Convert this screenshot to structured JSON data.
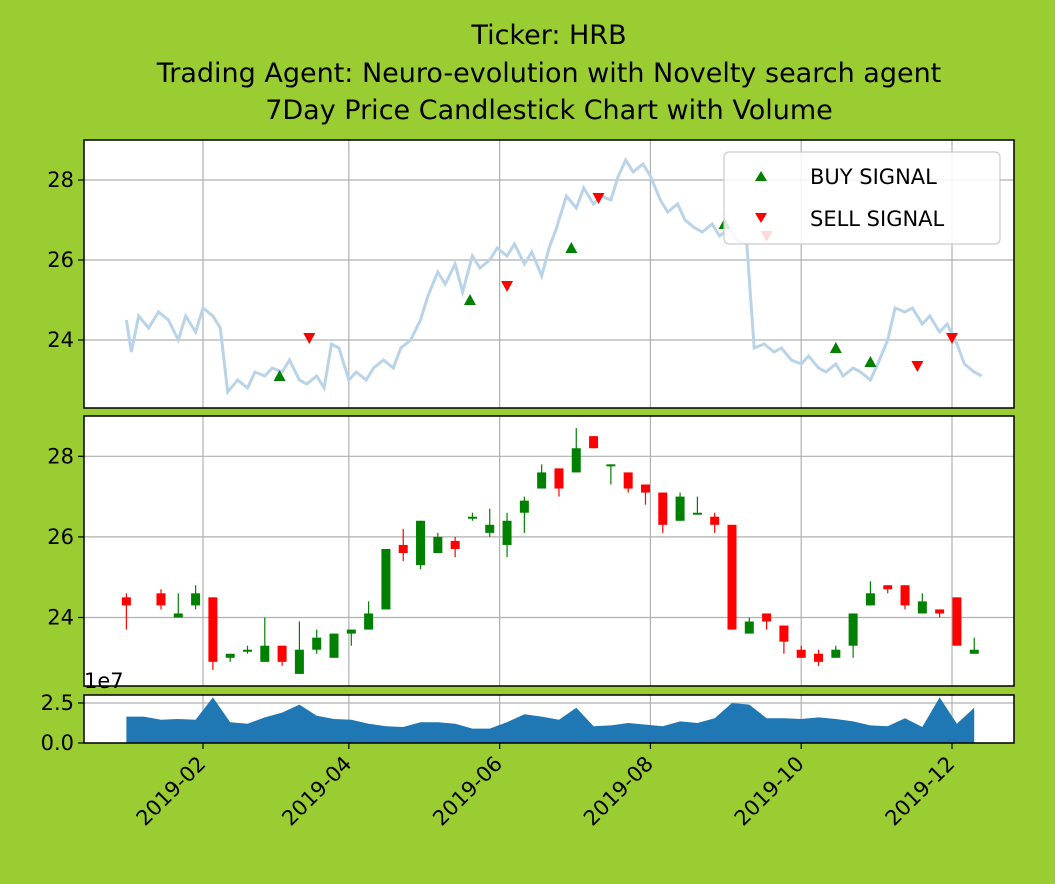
{
  "titles": [
    "Ticker: HRB",
    "Trading Agent: Neuro-evolution with Novelty search agent",
    "7Day Price Candlestick Chart with Volume"
  ],
  "colors": {
    "background": "#9acd32",
    "price_line": "#b9d4e8",
    "buy": "#008000",
    "sell": "#ff0000",
    "up_candle": "#008000",
    "down_candle": "#ff0000",
    "volume": "#1f77b4",
    "grid": "#b0b0b0"
  },
  "chart_data": [
    {
      "type": "line",
      "panel": "price",
      "y_ticks": [
        24,
        26,
        28
      ],
      "ylim": [
        22.3,
        29.0
      ],
      "x_ticks": [
        "2019-02",
        "2019-04",
        "2019-06",
        "2019-08",
        "2019-10",
        "2019-12"
      ],
      "grid": true,
      "legend_position": "top-right",
      "series_price": [
        [
          "2019-01-01",
          24.5
        ],
        [
          "2019-01-03",
          23.7
        ],
        [
          "2019-01-06",
          24.6
        ],
        [
          "2019-01-10",
          24.3
        ],
        [
          "2019-01-14",
          24.7
        ],
        [
          "2019-01-18",
          24.5
        ],
        [
          "2019-01-22",
          24.0
        ],
        [
          "2019-01-25",
          24.6
        ],
        [
          "2019-01-29",
          24.2
        ],
        [
          "2019-02-01",
          24.8
        ],
        [
          "2019-02-05",
          24.6
        ],
        [
          "2019-02-08",
          24.3
        ],
        [
          "2019-02-11",
          22.7
        ],
        [
          "2019-02-15",
          23.0
        ],
        [
          "2019-02-19",
          22.8
        ],
        [
          "2019-02-22",
          23.2
        ],
        [
          "2019-02-26",
          23.1
        ],
        [
          "2019-03-01",
          23.3
        ],
        [
          "2019-03-05",
          23.2
        ],
        [
          "2019-03-08",
          23.5
        ],
        [
          "2019-03-12",
          23.0
        ],
        [
          "2019-03-15",
          22.9
        ],
        [
          "2019-03-19",
          23.1
        ],
        [
          "2019-03-22",
          22.8
        ],
        [
          "2019-03-25",
          23.9
        ],
        [
          "2019-03-28",
          23.8
        ],
        [
          "2019-04-01",
          23.0
        ],
        [
          "2019-04-04",
          23.2
        ],
        [
          "2019-04-08",
          23.0
        ],
        [
          "2019-04-11",
          23.3
        ],
        [
          "2019-04-15",
          23.5
        ],
        [
          "2019-04-19",
          23.3
        ],
        [
          "2019-04-22",
          23.8
        ],
        [
          "2019-04-26",
          24.0
        ],
        [
          "2019-04-30",
          24.5
        ],
        [
          "2019-05-03",
          25.1
        ],
        [
          "2019-05-07",
          25.7
        ],
        [
          "2019-05-10",
          25.4
        ],
        [
          "2019-05-14",
          25.9
        ],
        [
          "2019-05-17",
          25.2
        ],
        [
          "2019-05-21",
          26.1
        ],
        [
          "2019-05-24",
          25.8
        ],
        [
          "2019-05-28",
          26.0
        ],
        [
          "2019-05-31",
          26.3
        ],
        [
          "2019-06-04",
          26.1
        ],
        [
          "2019-06-07",
          26.4
        ],
        [
          "2019-06-11",
          25.9
        ],
        [
          "2019-06-14",
          26.2
        ],
        [
          "2019-06-18",
          25.6
        ],
        [
          "2019-06-21",
          26.3
        ],
        [
          "2019-06-24",
          26.8
        ],
        [
          "2019-06-28",
          27.6
        ],
        [
          "2019-07-02",
          27.3
        ],
        [
          "2019-07-05",
          27.8
        ],
        [
          "2019-07-09",
          27.4
        ],
        [
          "2019-07-12",
          27.6
        ],
        [
          "2019-07-16",
          27.5
        ],
        [
          "2019-07-19",
          28.1
        ],
        [
          "2019-07-22",
          28.5
        ],
        [
          "2019-07-25",
          28.2
        ],
        [
          "2019-07-29",
          28.4
        ],
        [
          "2019-08-01",
          28.1
        ],
        [
          "2019-08-05",
          27.5
        ],
        [
          "2019-08-08",
          27.2
        ],
        [
          "2019-08-12",
          27.4
        ],
        [
          "2019-08-15",
          27.0
        ],
        [
          "2019-08-19",
          26.8
        ],
        [
          "2019-08-22",
          26.7
        ],
        [
          "2019-08-26",
          26.9
        ],
        [
          "2019-08-29",
          26.6
        ],
        [
          "2019-09-02",
          26.8
        ],
        [
          "2019-09-05",
          26.5
        ],
        [
          "2019-09-09",
          26.4
        ],
        [
          "2019-09-12",
          23.8
        ],
        [
          "2019-09-16",
          23.9
        ],
        [
          "2019-09-20",
          23.7
        ],
        [
          "2019-09-23",
          23.8
        ],
        [
          "2019-09-27",
          23.5
        ],
        [
          "2019-10-01",
          23.4
        ],
        [
          "2019-10-04",
          23.6
        ],
        [
          "2019-10-08",
          23.3
        ],
        [
          "2019-10-11",
          23.2
        ],
        [
          "2019-10-15",
          23.4
        ],
        [
          "2019-10-18",
          23.1
        ],
        [
          "2019-10-22",
          23.3
        ],
        [
          "2019-10-25",
          23.2
        ],
        [
          "2019-10-29",
          23.0
        ],
        [
          "2019-11-01",
          23.4
        ],
        [
          "2019-11-05",
          24.0
        ],
        [
          "2019-11-08",
          24.8
        ],
        [
          "2019-11-12",
          24.7
        ],
        [
          "2019-11-15",
          24.8
        ],
        [
          "2019-11-19",
          24.4
        ],
        [
          "2019-11-22",
          24.6
        ],
        [
          "2019-11-26",
          24.2
        ],
        [
          "2019-11-29",
          24.4
        ],
        [
          "2019-12-03",
          23.9
        ],
        [
          "2019-12-06",
          23.4
        ],
        [
          "2019-12-10",
          23.2
        ],
        [
          "2019-12-13",
          23.1
        ]
      ],
      "buy_signals": [
        [
          "2019-03-04",
          23.1
        ],
        [
          "2019-05-20",
          25.0
        ],
        [
          "2019-06-30",
          26.3
        ],
        [
          "2019-08-31",
          26.9
        ],
        [
          "2019-10-15",
          23.8
        ],
        [
          "2019-10-29",
          23.45
        ]
      ],
      "sell_signals": [
        [
          "2019-03-16",
          24.05
        ],
        [
          "2019-06-04",
          25.35
        ],
        [
          "2019-07-11",
          27.55
        ],
        [
          "2019-09-17",
          26.6
        ],
        [
          "2019-11-17",
          23.35
        ],
        [
          "2019-12-01",
          24.05
        ]
      ],
      "legend": [
        "BUY SIGNAL",
        "SELL SIGNAL"
      ]
    },
    {
      "type": "candlestick",
      "panel": "ohlc",
      "y_ticks": [
        24,
        26,
        28
      ],
      "ylim": [
        22.3,
        29.0
      ],
      "grid": true,
      "candles": [
        [
          "2019-01-01",
          24.5,
          24.6,
          23.7,
          24.3
        ],
        [
          "2019-01-15",
          24.6,
          24.7,
          24.2,
          24.3
        ],
        [
          "2019-01-22",
          24.0,
          24.6,
          24.0,
          24.1
        ],
        [
          "2019-01-29",
          24.3,
          24.8,
          24.2,
          24.6
        ],
        [
          "2019-02-05",
          24.5,
          24.5,
          22.7,
          22.9
        ],
        [
          "2019-02-12",
          23.0,
          23.1,
          22.9,
          23.1
        ],
        [
          "2019-02-19",
          23.2,
          23.3,
          23.1,
          23.2
        ],
        [
          "2019-02-26",
          22.9,
          24.0,
          22.9,
          23.3
        ],
        [
          "2019-03-05",
          23.3,
          23.3,
          22.8,
          22.9
        ],
        [
          "2019-03-12",
          22.6,
          23.9,
          22.6,
          23.2
        ],
        [
          "2019-03-19",
          23.2,
          23.7,
          23.1,
          23.5
        ],
        [
          "2019-03-26",
          23.0,
          23.6,
          23.0,
          23.6
        ],
        [
          "2019-04-02",
          23.6,
          23.7,
          23.3,
          23.7
        ],
        [
          "2019-04-09",
          23.7,
          24.4,
          23.7,
          24.1
        ],
        [
          "2019-04-16",
          24.2,
          25.7,
          24.2,
          25.7
        ],
        [
          "2019-04-23",
          25.8,
          26.2,
          25.4,
          25.6
        ],
        [
          "2019-04-30",
          25.3,
          26.4,
          25.2,
          26.4
        ],
        [
          "2019-05-07",
          25.6,
          26.1,
          25.6,
          26.0
        ],
        [
          "2019-05-14",
          25.9,
          26.0,
          25.5,
          25.7
        ],
        [
          "2019-05-21",
          26.5,
          26.6,
          26.4,
          26.5
        ],
        [
          "2019-05-28",
          26.1,
          26.7,
          26.0,
          26.3
        ],
        [
          "2019-06-04",
          25.8,
          26.6,
          25.5,
          26.4
        ],
        [
          "2019-06-11",
          26.6,
          27.0,
          26.1,
          26.9
        ],
        [
          "2019-06-18",
          27.2,
          27.8,
          27.2,
          27.6
        ],
        [
          "2019-06-25",
          27.7,
          27.7,
          27.0,
          27.2
        ],
        [
          "2019-07-02",
          27.6,
          28.7,
          27.6,
          28.2
        ],
        [
          "2019-07-09",
          28.5,
          28.5,
          28.2,
          28.2
        ],
        [
          "2019-07-16",
          27.8,
          27.8,
          27.3,
          27.8
        ],
        [
          "2019-07-23",
          27.6,
          27.6,
          27.1,
          27.2
        ],
        [
          "2019-07-30",
          27.3,
          27.3,
          26.8,
          27.1
        ],
        [
          "2019-08-06",
          27.1,
          27.1,
          26.1,
          26.3
        ],
        [
          "2019-08-13",
          26.4,
          27.1,
          26.4,
          27.0
        ],
        [
          "2019-08-20",
          26.6,
          27.0,
          26.6,
          26.6
        ],
        [
          "2019-08-27",
          26.5,
          26.6,
          26.1,
          26.3
        ],
        [
          "2019-09-03",
          26.3,
          26.3,
          23.7,
          23.7
        ],
        [
          "2019-09-10",
          23.6,
          24.0,
          23.6,
          23.9
        ],
        [
          "2019-09-17",
          24.1,
          24.1,
          23.7,
          23.9
        ],
        [
          "2019-09-24",
          23.8,
          23.8,
          23.1,
          23.4
        ],
        [
          "2019-10-01",
          23.2,
          23.3,
          23.0,
          23.0
        ],
        [
          "2019-10-08",
          23.1,
          23.2,
          22.8,
          22.9
        ],
        [
          "2019-10-15",
          23.0,
          23.3,
          23.0,
          23.2
        ],
        [
          "2019-10-22",
          23.3,
          24.1,
          23.0,
          24.1
        ],
        [
          "2019-10-29",
          24.3,
          24.9,
          24.3,
          24.6
        ],
        [
          "2019-11-05",
          24.8,
          24.8,
          24.6,
          24.7
        ],
        [
          "2019-11-12",
          24.8,
          24.8,
          24.2,
          24.3
        ],
        [
          "2019-11-19",
          24.1,
          24.6,
          24.1,
          24.4
        ],
        [
          "2019-11-26",
          24.2,
          24.2,
          24.0,
          24.1
        ],
        [
          "2019-12-03",
          24.5,
          24.5,
          23.3,
          23.3
        ],
        [
          "2019-12-10",
          23.1,
          23.5,
          23.1,
          23.2
        ]
      ]
    },
    {
      "type": "area",
      "panel": "volume",
      "scale_label": "1e7",
      "y_ticks": [
        "0.0",
        "2.5"
      ],
      "ylim": [
        0,
        3.0
      ],
      "grid": true,
      "volume": [
        [
          "2019-01-01",
          1.65
        ],
        [
          "2019-01-08",
          1.65
        ],
        [
          "2019-01-15",
          1.45
        ],
        [
          "2019-01-22",
          1.5
        ],
        [
          "2019-01-29",
          1.45
        ],
        [
          "2019-02-05",
          2.85
        ],
        [
          "2019-02-12",
          1.3
        ],
        [
          "2019-02-19",
          1.2
        ],
        [
          "2019-02-26",
          1.6
        ],
        [
          "2019-03-05",
          1.9
        ],
        [
          "2019-03-12",
          2.4
        ],
        [
          "2019-03-19",
          1.7
        ],
        [
          "2019-03-26",
          1.5
        ],
        [
          "2019-04-02",
          1.45
        ],
        [
          "2019-04-09",
          1.2
        ],
        [
          "2019-04-16",
          1.05
        ],
        [
          "2019-04-23",
          1.0
        ],
        [
          "2019-04-30",
          1.3
        ],
        [
          "2019-05-07",
          1.3
        ],
        [
          "2019-05-14",
          1.2
        ],
        [
          "2019-05-21",
          0.9
        ],
        [
          "2019-05-28",
          0.9
        ],
        [
          "2019-06-04",
          1.3
        ],
        [
          "2019-06-11",
          1.8
        ],
        [
          "2019-06-18",
          1.65
        ],
        [
          "2019-06-25",
          1.45
        ],
        [
          "2019-07-02",
          2.2
        ],
        [
          "2019-07-09",
          1.05
        ],
        [
          "2019-07-16",
          1.1
        ],
        [
          "2019-07-23",
          1.25
        ],
        [
          "2019-07-30",
          1.15
        ],
        [
          "2019-08-06",
          1.05
        ],
        [
          "2019-08-13",
          1.35
        ],
        [
          "2019-08-20",
          1.25
        ],
        [
          "2019-08-27",
          1.55
        ],
        [
          "2019-09-03",
          2.5
        ],
        [
          "2019-09-10",
          2.4
        ],
        [
          "2019-09-17",
          1.55
        ],
        [
          "2019-09-24",
          1.55
        ],
        [
          "2019-10-01",
          1.5
        ],
        [
          "2019-10-08",
          1.6
        ],
        [
          "2019-10-15",
          1.5
        ],
        [
          "2019-10-22",
          1.35
        ],
        [
          "2019-10-29",
          1.1
        ],
        [
          "2019-11-05",
          1.05
        ],
        [
          "2019-11-12",
          1.55
        ],
        [
          "2019-11-19",
          1.0
        ],
        [
          "2019-11-26",
          2.85
        ],
        [
          "2019-12-03",
          1.2
        ],
        [
          "2019-12-10",
          2.2
        ]
      ]
    }
  ]
}
